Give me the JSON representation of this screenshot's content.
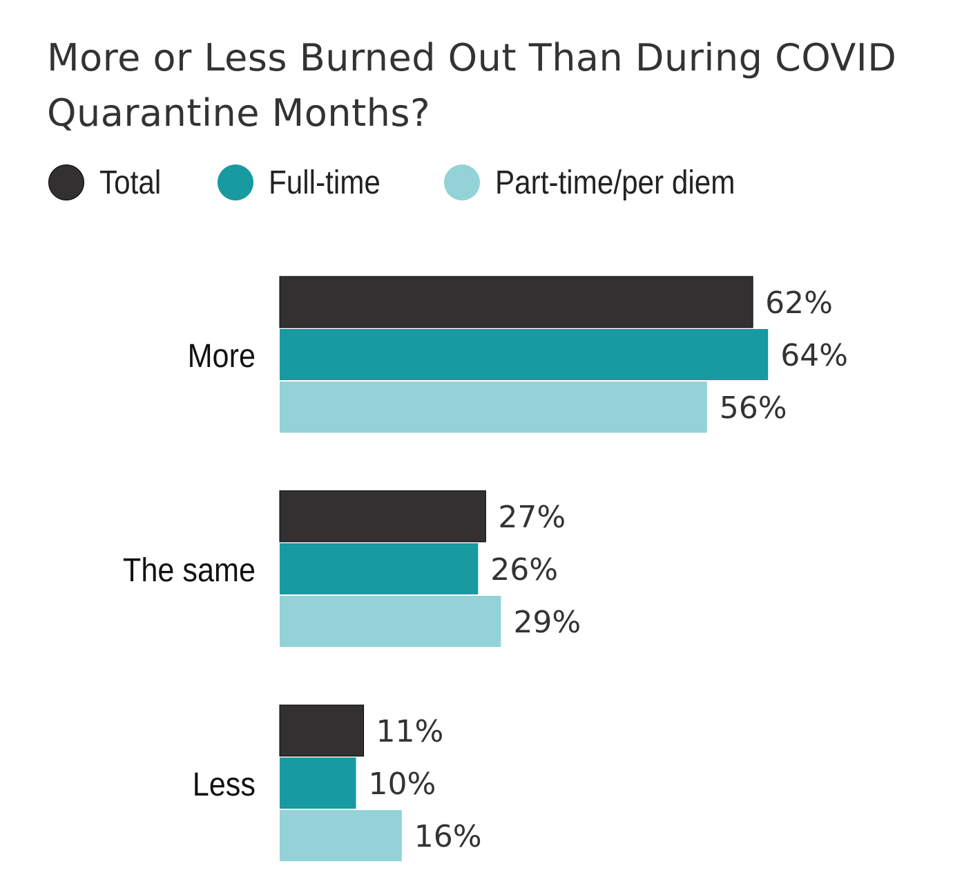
{
  "chart_data": {
    "type": "bar",
    "orientation": "horizontal",
    "title": "More or Less Burned Out Than During COVID Quarantine Months?",
    "categories": [
      "More",
      "The same",
      "Less"
    ],
    "series": [
      {
        "name": "Total",
        "color": "#323031",
        "values": [
          62,
          27,
          11
        ]
      },
      {
        "name": "Full-time",
        "color": "#179aa0",
        "values": [
          64,
          26,
          10
        ]
      },
      {
        "name": "Part-time/per diem",
        "color": "#93d3d7",
        "values": [
          56,
          29,
          16
        ]
      }
    ],
    "value_suffix": "%",
    "legend": "top-left",
    "grid": false,
    "xlim": [
      0,
      100
    ]
  }
}
